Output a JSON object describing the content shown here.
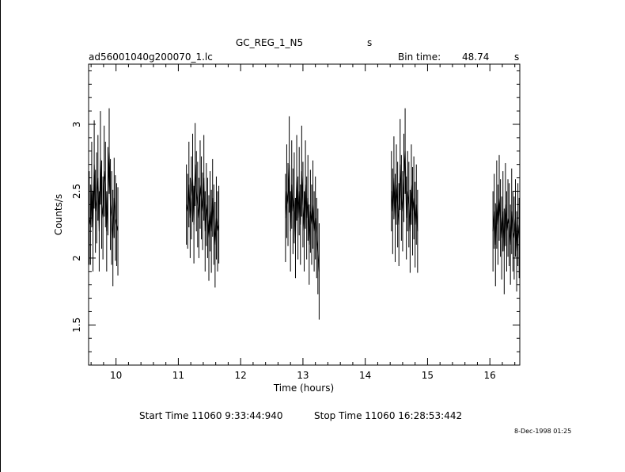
{
  "header": {
    "object_name": "GC_REG_1_N5",
    "object_unit": "s",
    "file_name": "ad56001040g200070_1.lc",
    "bin_time_label": "Bin time:",
    "bin_time_value": "48.74",
    "bin_time_unit": "s"
  },
  "footer": {
    "start_label": "Start Time 11060  9:33:44:940",
    "stop_label": "Stop Time 11060 16:28:53:442",
    "date_stamp": "8-Dec-1998 01:25"
  },
  "chart_data": {
    "type": "scatter",
    "title": "GC_REG_1_N5",
    "xlabel": "Time (hours)",
    "ylabel": "Counts/s",
    "xlim": [
      9.56,
      16.48
    ],
    "ylim": [
      1.2,
      3.45
    ],
    "x_ticks": [
      10,
      11,
      12,
      13,
      14,
      15,
      16
    ],
    "x_tick_labels": [
      "10",
      "11",
      "12",
      "13",
      "14",
      "15",
      "16"
    ],
    "y_ticks": [
      1.5,
      2,
      2.5,
      3
    ],
    "y_tick_labels": [
      "1.5",
      "2",
      "2.5",
      "3"
    ],
    "grid": false,
    "line_color": "#000000",
    "series": [
      {
        "x": [
          9.57,
          9.59,
          9.61,
          9.63,
          9.65,
          9.67,
          9.69,
          9.71,
          9.73,
          9.75,
          9.77,
          9.79,
          9.81,
          9.83,
          9.85,
          9.87,
          9.89,
          9.91,
          9.93,
          9.95,
          9.97,
          9.99,
          10.01,
          10.03
        ],
        "y": [
          2.3,
          2.25,
          2.55,
          2.2,
          2.7,
          2.35,
          2.45,
          2.6,
          2.2,
          2.75,
          2.4,
          2.3,
          2.65,
          2.55,
          2.2,
          2.5,
          2.8,
          2.4,
          2.3,
          2.15,
          2.45,
          2.3,
          2.25,
          2.2
        ],
        "err": [
          0.35,
          0.3,
          0.32,
          0.3,
          0.33,
          0.31,
          0.34,
          0.32,
          0.3,
          0.35,
          0.33,
          0.31,
          0.34,
          0.32,
          0.3,
          0.33,
          0.32,
          0.34,
          0.35,
          0.36,
          0.3,
          0.32,
          0.31,
          0.33
        ]
      },
      {
        "x": [
          11.13,
          11.15,
          11.17,
          11.19,
          11.21,
          11.23,
          11.25,
          11.27,
          11.29,
          11.31,
          11.33,
          11.35,
          11.37,
          11.39,
          11.41,
          11.43,
          11.45,
          11.47,
          11.49,
          11.51,
          11.53,
          11.55,
          11.57,
          11.59,
          11.61,
          11.63,
          11.65
        ],
        "y": [
          2.4,
          2.35,
          2.55,
          2.3,
          2.45,
          2.6,
          2.25,
          2.7,
          2.5,
          2.4,
          2.3,
          2.55,
          2.45,
          2.35,
          2.6,
          2.2,
          2.4,
          2.3,
          2.15,
          2.35,
          2.2,
          2.45,
          2.25,
          2.1,
          2.3,
          2.2,
          2.25
        ],
        "err": [
          0.3,
          0.28,
          0.32,
          0.3,
          0.31,
          0.33,
          0.29,
          0.31,
          0.3,
          0.32,
          0.3,
          0.33,
          0.31,
          0.29,
          0.32,
          0.3,
          0.31,
          0.3,
          0.32,
          0.3,
          0.31,
          0.29,
          0.3,
          0.32,
          0.31,
          0.3,
          0.29
        ]
      },
      {
        "x": [
          12.72,
          12.74,
          12.76,
          12.78,
          12.8,
          12.82,
          12.84,
          12.86,
          12.88,
          12.9,
          12.92,
          12.94,
          12.96,
          12.98,
          13.0,
          13.02,
          13.04,
          13.06,
          13.08,
          13.1,
          13.12,
          13.14,
          13.16,
          13.18,
          13.2,
          13.22,
          13.24,
          13.26
        ],
        "y": [
          2.3,
          2.5,
          2.4,
          2.7,
          2.2,
          2.55,
          2.35,
          2.45,
          2.15,
          2.6,
          2.3,
          2.5,
          2.25,
          2.65,
          2.4,
          2.2,
          2.55,
          2.3,
          2.45,
          2.1,
          2.35,
          2.25,
          2.4,
          2.2,
          2.3,
          2.15,
          2.05,
          1.9
        ],
        "err": [
          0.33,
          0.35,
          0.31,
          0.36,
          0.3,
          0.33,
          0.32,
          0.34,
          0.3,
          0.32,
          0.31,
          0.33,
          0.3,
          0.34,
          0.32,
          0.3,
          0.33,
          0.31,
          0.32,
          0.3,
          0.31,
          0.3,
          0.33,
          0.3,
          0.31,
          0.3,
          0.32,
          0.36
        ]
      },
      {
        "x": [
          14.42,
          14.44,
          14.46,
          14.48,
          14.5,
          14.52,
          14.54,
          14.56,
          14.58,
          14.6,
          14.62,
          14.64,
          14.66,
          14.68,
          14.7,
          14.72,
          14.74,
          14.76,
          14.78,
          14.8,
          14.82,
          14.84
        ],
        "y": [
          2.5,
          2.35,
          2.6,
          2.3,
          2.55,
          2.4,
          2.25,
          2.7,
          2.45,
          2.35,
          2.6,
          2.8,
          2.3,
          2.5,
          2.4,
          2.2,
          2.55,
          2.35,
          2.45,
          2.25,
          2.4,
          2.2
        ],
        "err": [
          0.3,
          0.32,
          0.31,
          0.33,
          0.3,
          0.32,
          0.31,
          0.34,
          0.32,
          0.3,
          0.33,
          0.32,
          0.31,
          0.3,
          0.32,
          0.31,
          0.3,
          0.33,
          0.31,
          0.32,
          0.3,
          0.31
        ]
      },
      {
        "x": [
          16.05,
          16.07,
          16.09,
          16.11,
          16.13,
          16.15,
          16.17,
          16.19,
          16.21,
          16.23,
          16.25,
          16.27,
          16.29,
          16.31,
          16.33,
          16.35,
          16.37,
          16.39,
          16.41,
          16.43,
          16.45,
          16.47
        ],
        "y": [
          2.2,
          2.35,
          2.1,
          2.4,
          2.25,
          2.45,
          2.3,
          2.15,
          2.35,
          2.05,
          2.4,
          2.2,
          2.3,
          2.25,
          2.1,
          2.35,
          2.2,
          2.15,
          2.3,
          2.05,
          2.25,
          2.15
        ],
        "err": [
          0.3,
          0.28,
          0.31,
          0.33,
          0.3,
          0.32,
          0.29,
          0.31,
          0.3,
          0.32,
          0.31,
          0.3,
          0.29,
          0.31,
          0.3,
          0.32,
          0.3,
          0.31,
          0.29,
          0.3,
          0.31,
          0.3
        ]
      }
    ]
  }
}
